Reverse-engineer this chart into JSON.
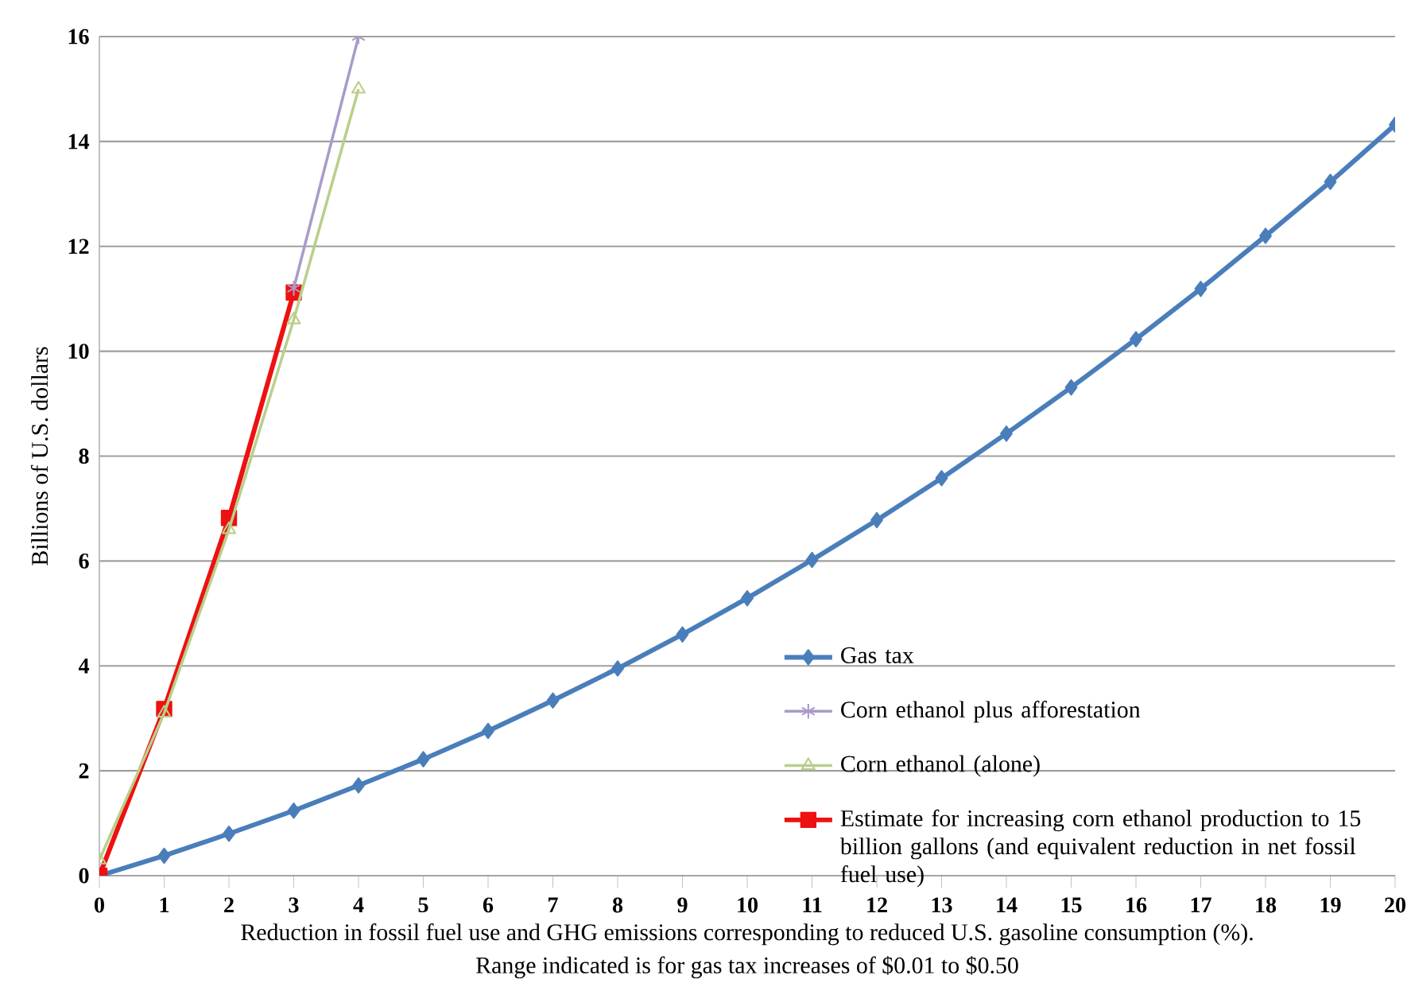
{
  "chart_data": {
    "type": "line",
    "ylabel": "Billions of U.S. dollars",
    "xlabel": "Reduction in fossil fuel use and GHG emissions corresponding to reduced U.S. gasoline consumption (%).",
    "annotations": [
      "Range indicated is for gas tax increases of $0.01 to $0.50"
    ],
    "x": [
      0,
      1,
      2,
      3,
      4,
      5,
      6,
      7,
      8,
      9,
      10,
      11,
      12,
      13,
      14,
      15,
      16,
      17,
      18,
      19,
      20
    ],
    "xlim": [
      0,
      20
    ],
    "xticks": [
      0,
      1,
      2,
      3,
      4,
      5,
      6,
      7,
      8,
      9,
      10,
      11,
      12,
      13,
      14,
      15,
      16,
      17,
      18,
      19,
      20
    ],
    "ylim": [
      0,
      16
    ],
    "yticks": [
      0,
      2,
      4,
      6,
      8,
      10,
      12,
      14,
      16
    ],
    "grid": "y",
    "legend": "bottom right",
    "series": [
      {
        "name": "Gas tax",
        "color": "#4a7ebb",
        "marker": "diamond",
        "values": [
          0,
          0.38,
          0.8,
          1.24,
          1.72,
          2.22,
          2.76,
          3.34,
          3.95,
          4.6,
          5.29,
          6.02,
          6.78,
          7.58,
          8.43,
          9.31,
          10.23,
          11.19,
          12.2,
          13.23,
          14.32
        ]
      },
      {
        "name": "Corn ethanol plus afforestation",
        "color": "#a99bc9",
        "marker": "cross",
        "x": [
          3,
          4
        ],
        "values": [
          11.2,
          16
        ]
      },
      {
        "name": "Corn ethanol (alone)",
        "color": "#b9cf8a",
        "marker": "triangle",
        "x": [
          0,
          1,
          2,
          3,
          4
        ],
        "values": [
          0.3,
          3.1,
          6.6,
          10.6,
          15.0
        ]
      },
      {
        "name": "Estimate for increasing corn ethanol production to 15 billion gallons (and equivalent reduction in net fossil fuel use)",
        "color": "#ee1111",
        "marker": "square",
        "x": [
          0,
          1,
          2,
          3
        ],
        "values": [
          0,
          3.18,
          6.82,
          11.12
        ]
      }
    ]
  }
}
